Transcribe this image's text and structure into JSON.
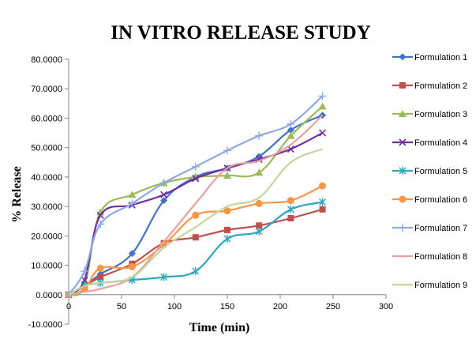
{
  "chart_data": {
    "type": "line",
    "title": "IN VITRO RELEASE STUDY",
    "xlabel": "Time (min)",
    "ylabel": "% Release",
    "xlim": [
      0,
      300
    ],
    "ylim": [
      -10,
      80
    ],
    "x_ticks": [
      "0",
      "50",
      "100",
      "150",
      "200",
      "250",
      "300"
    ],
    "y_ticks": [
      "-10.0000",
      "0.0000",
      "10.0000",
      "20.0000",
      "30.0000",
      "40.0000",
      "50.0000",
      "60.0000",
      "70.0000",
      "80.0000"
    ],
    "grid": false,
    "legend_position": "right",
    "x": [
      0,
      15,
      30,
      60,
      90,
      120,
      150,
      180,
      210,
      240
    ],
    "series": [
      {
        "name": "Formulation 1",
        "color": "#4472C4",
        "marker": "diamond",
        "values": [
          0,
          3,
          7,
          14,
          32,
          40,
          43,
          47,
          56,
          61
        ]
      },
      {
        "name": "Formulation 2",
        "color": "#C0504D",
        "marker": "square",
        "values": [
          0,
          3,
          6,
          10.5,
          17.5,
          19.5,
          22,
          23.5,
          26,
          29
        ]
      },
      {
        "name": "Formulation 3",
        "color": "#9BBB59",
        "marker": "triangle",
        "values": [
          0,
          3,
          28,
          34,
          38,
          40,
          40.5,
          41.5,
          54,
          64
        ]
      },
      {
        "name": "Formulation 4",
        "color": "#7030A0",
        "marker": "x",
        "values": [
          0,
          5,
          27,
          30.5,
          34,
          39.5,
          43,
          46,
          49.5,
          55
        ]
      },
      {
        "name": "Formulation 5",
        "color": "#31A5BF",
        "marker": "star",
        "values": [
          0,
          3,
          4,
          5,
          6,
          8,
          19,
          21.5,
          29,
          31.5
        ]
      },
      {
        "name": "Formulation 6",
        "color": "#F79646",
        "marker": "circle",
        "values": [
          0,
          2,
          9,
          9.5,
          17,
          27,
          28.5,
          31,
          32,
          37
        ]
      },
      {
        "name": "Formulation 7",
        "color": "#8EA9E0",
        "marker": "plus",
        "values": [
          0,
          8,
          24,
          31,
          38,
          43.5,
          49,
          54,
          58,
          67.5
        ]
      },
      {
        "name": "Formulation 8",
        "color": "#E6A0A0",
        "marker": "none",
        "values": [
          0,
          1,
          2,
          6,
          18,
          31,
          43,
          45.5,
          51,
          61
        ]
      },
      {
        "name": "Formulation 9",
        "color": "#C3D69B",
        "marker": "none",
        "values": [
          0,
          3,
          4,
          6,
          16,
          23,
          30,
          33,
          45,
          49.5
        ]
      }
    ]
  }
}
